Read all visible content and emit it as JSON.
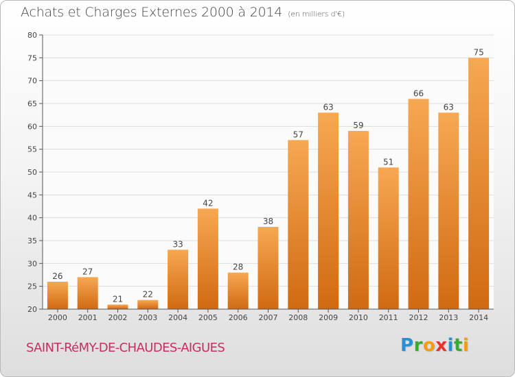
{
  "header": {
    "title": "Achats et Charges Externes 2000 à 2014",
    "subtitle": "(en milliers d'€)"
  },
  "footer": {
    "commune": "SAINT-RéMY-DE-CHAUDES-AIGUES",
    "logo": {
      "letters": [
        "P",
        "r",
        "o",
        "x",
        "i",
        "t",
        "i"
      ],
      "colors": [
        "#2b8fd4",
        "#3aaa35",
        "#f39c12",
        "#e6332a",
        "#2b8fd4",
        "#3aaa35",
        "#f39c12"
      ]
    }
  },
  "colors": {
    "bar_top": "#f7a852",
    "bar_bottom": "#d06a12",
    "grid": "#dddddd",
    "axis": "#555555"
  },
  "chart_data": {
    "type": "bar",
    "title": "Achats et Charges Externes 2000 à 2014",
    "subtitle": "(en milliers d'€)",
    "categories": [
      "2000",
      "2001",
      "2002",
      "2003",
      "2004",
      "2005",
      "2006",
      "2007",
      "2008",
      "2009",
      "2010",
      "2011",
      "2012",
      "2013",
      "2014"
    ],
    "values": [
      26,
      27,
      21,
      22,
      33,
      42,
      28,
      38,
      57,
      63,
      59,
      51,
      66,
      63,
      75
    ],
    "ylim": [
      20,
      80
    ],
    "yticks": [
      20,
      25,
      30,
      35,
      40,
      45,
      50,
      55,
      60,
      65,
      70,
      75,
      80
    ],
    "grid": true,
    "data_labels": true
  }
}
